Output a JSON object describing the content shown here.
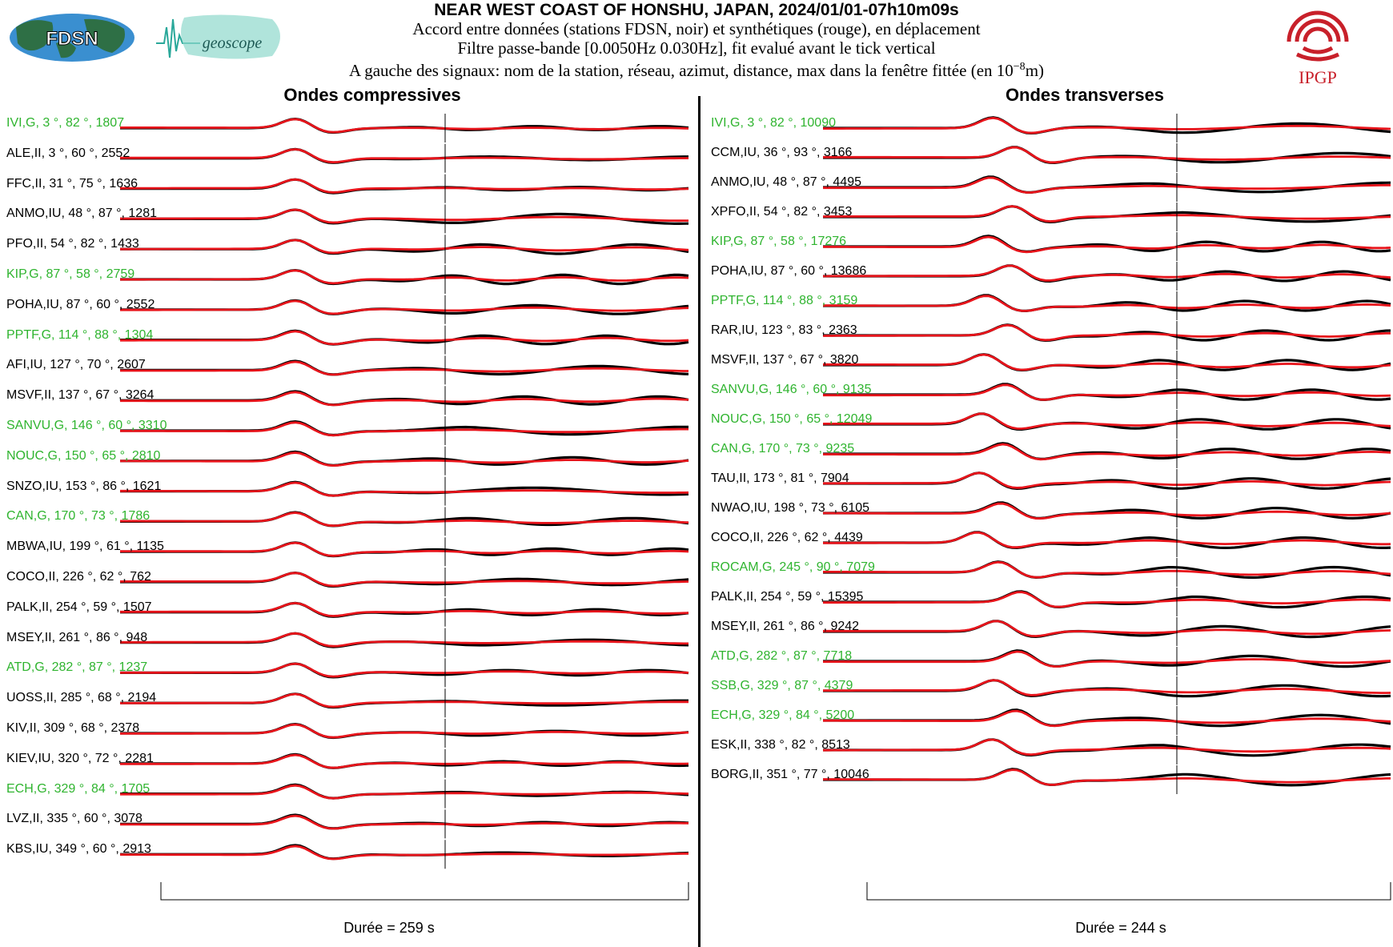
{
  "header": {
    "title": "NEAR WEST COAST OF HONSHU, JAPAN, 2024/01/01-07h10m09s",
    "line1": "Accord entre données (stations FDSN, noir) et synthétiques (rouge), en déplacement",
    "line2": "Filtre passe-bande [0.0050Hz 0.030Hz], fit evalué avant le tick vertical",
    "line3_pre": "A gauche des signaux: nom de la station, réseau, azimut, distance, max dans la fenêtre fittée (en 10",
    "line3_exp": "−8",
    "line3_post": "m)"
  },
  "logos": {
    "fdsn": "FDSN",
    "geoscope": "geoscope",
    "ipgp": "IPGP"
  },
  "colors": {
    "data": "#000000",
    "synthetic": "#e8141b",
    "highlight": "#2fb42f",
    "normal": "#000000"
  },
  "chart_data": [
    {
      "type": "line",
      "title": "Ondes compressives",
      "xlabel": "Durée = 259 s",
      "duration_s": 259,
      "stations": [
        {
          "label": "IVI,G, 3 °, 82 °, 1807",
          "green": true
        },
        {
          "label": "ALE,II, 3 °, 60 °, 2552",
          "green": false
        },
        {
          "label": "FFC,II, 31 °, 75 °, 1636",
          "green": false
        },
        {
          "label": "ANMO,IU, 48 °, 87 °, 1281",
          "green": false
        },
        {
          "label": "PFO,II, 54 °, 82 °, 1433",
          "green": false
        },
        {
          "label": "KIP,G, 87 °, 58 °, 2759",
          "green": true
        },
        {
          "label": "POHA,IU, 87 °, 60 °, 2552",
          "green": false
        },
        {
          "label": "PPTF,G, 114 °, 88 °, 1304",
          "green": true
        },
        {
          "label": "AFI,IU, 127 °, 70 °, 2607",
          "green": false
        },
        {
          "label": "MSVF,II, 137 °, 67 °, 3264",
          "green": false
        },
        {
          "label": "SANVU,G, 146 °, 60 °, 3310",
          "green": true
        },
        {
          "label": "NOUC,G, 150 °, 65 °, 2810",
          "green": true
        },
        {
          "label": "SNZO,IU, 153 °, 86 °, 1621",
          "green": false
        },
        {
          "label": "CAN,G, 170 °, 73 °, 1786",
          "green": true
        },
        {
          "label": "MBWA,IU, 199 °, 61 °, 1135",
          "green": false
        },
        {
          "label": "COCO,II, 226 °, 62 °, 762",
          "green": false
        },
        {
          "label": "PALK,II, 254 °, 59 °, 1507",
          "green": false
        },
        {
          "label": "MSEY,II, 261 °, 86 °, 948",
          "green": false
        },
        {
          "label": "ATD,G, 282 °, 87 °, 1237",
          "green": true
        },
        {
          "label": "UOSS,II, 285 °, 68 °, 2194",
          "green": false
        },
        {
          "label": "KIV,II, 309 °, 68 °, 2378",
          "green": false
        },
        {
          "label": "KIEV,IU, 320 °, 72 °, 2281",
          "green": false
        },
        {
          "label": "ECH,G, 329 °, 84 °, 1705",
          "green": true
        },
        {
          "label": "LVZ,II, 335 °, 60 °, 3078",
          "green": false
        },
        {
          "label": "KBS,IU, 349 °, 60 °, 2913",
          "green": false
        }
      ]
    },
    {
      "type": "line",
      "title": "Ondes transverses",
      "xlabel": "Durée = 244 s",
      "duration_s": 244,
      "stations": [
        {
          "label": "IVI,G, 3 °, 82 °, 10090",
          "green": true
        },
        {
          "label": "CCM,IU, 36 °, 93 °, 3166",
          "green": false
        },
        {
          "label": "ANMO,IU, 48 °, 87 °, 4495",
          "green": false
        },
        {
          "label": "XPFO,II, 54 °, 82 °, 3453",
          "green": false
        },
        {
          "label": "KIP,G, 87 °, 58 °, 17276",
          "green": true
        },
        {
          "label": "POHA,IU, 87 °, 60 °, 13686",
          "green": false
        },
        {
          "label": "PPTF,G, 114 °, 88 °, 3159",
          "green": true
        },
        {
          "label": "RAR,IU, 123 °, 83 °, 2363",
          "green": false
        },
        {
          "label": "MSVF,II, 137 °, 67 °, 3820",
          "green": false
        },
        {
          "label": "SANVU,G, 146 °, 60 °, 9135",
          "green": true
        },
        {
          "label": "NOUC,G, 150 °, 65 °, 12049",
          "green": true
        },
        {
          "label": "CAN,G, 170 °, 73 °, 9235",
          "green": true
        },
        {
          "label": "TAU,II, 173 °, 81 °, 7904",
          "green": false
        },
        {
          "label": "NWAO,IU, 198 °, 73 °, 6105",
          "green": false
        },
        {
          "label": "COCO,II, 226 °, 62 °, 4439",
          "green": false
        },
        {
          "label": "ROCAM,G, 245 °, 90 °, 7079",
          "green": true
        },
        {
          "label": "PALK,II, 254 °, 59 °, 15395",
          "green": false
        },
        {
          "label": "MSEY,II, 261 °, 86 °, 9242",
          "green": false
        },
        {
          "label": "ATD,G, 282 °, 87 °, 7718",
          "green": true
        },
        {
          "label": "SSB,G, 329 °, 87 °, 4379",
          "green": true
        },
        {
          "label": "ECH,G, 329 °, 84 °, 5200",
          "green": true
        },
        {
          "label": "ESK,II, 338 °, 82 °, 8513",
          "green": false
        },
        {
          "label": "BORG,II, 351 °, 77 °, 10046",
          "green": false
        }
      ]
    }
  ]
}
